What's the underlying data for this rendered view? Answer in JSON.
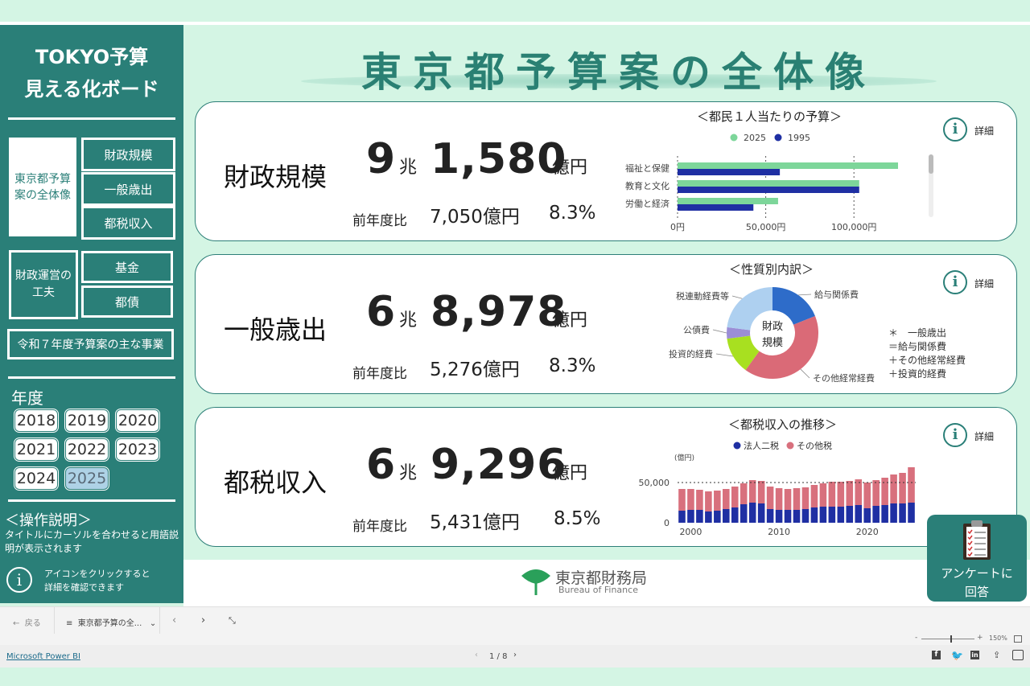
{
  "sidebar": {
    "title_line1": "TOKYO予算",
    "title_line2": "見える化ボード",
    "nav_overview_line1": "東京都予算",
    "nav_overview_line2": "案の全体像",
    "nav_fiscal_scale": "財政規模",
    "nav_general_expenditure": "一般歳出",
    "nav_tax_revenue": "都税収入",
    "nav_management_line1": "財政運営の",
    "nav_management_line2": "工夫",
    "nav_fund": "基金",
    "nav_bonds": "都債",
    "nav_main_projects": "令和７年度予算案の主な事業",
    "year_label": "年度",
    "years": [
      "2018",
      "2019",
      "2020",
      "2021",
      "2022",
      "2023",
      "2024",
      "2025"
    ],
    "selected_year": "2025",
    "op_title": "＜操作説明＞",
    "op_text_line1": "タイトルにカーソルを合わせると用語説",
    "op_text_line2": "明が表示されます",
    "info_icon_glyph": "i",
    "info_text_line1": "アイコンをクリックすると",
    "info_text_line2": "詳細を確認できます"
  },
  "main": {
    "title": "東京都予算案の全体像",
    "detail_label": "詳細",
    "info_glyph": "i",
    "cards": [
      {
        "label": "財政規模",
        "num1": "9",
        "unit1": "兆",
        "num2": "1,580",
        "unit2": "億円",
        "yoy_label": "前年度比",
        "yoy_amount": "7,050億円",
        "yoy_pct": "8.3%"
      },
      {
        "label": "一般歳出",
        "num1": "6",
        "unit1": "兆",
        "num2": "8,978",
        "unit2": "億円",
        "yoy_label": "前年度比",
        "yoy_amount": "5,276億円",
        "yoy_pct": "8.3%"
      },
      {
        "label": "都税収入",
        "num1": "6",
        "unit1": "兆",
        "num2": "9,296",
        "unit2": "億円",
        "yoy_label": "前年度比",
        "yoy_amount": "5,431億円",
        "yoy_pct": "8.5%"
      }
    ],
    "note_line1": "＊　一般歳出",
    "note_line2": "＝給与関係費",
    "note_line3": "＋その他経常経費",
    "note_line4": "＋投資的経費"
  },
  "charts": {
    "colors": {
      "green": "#7dd69a",
      "navy": "#1f2fa3",
      "red": "#d8707d",
      "blue_pie": "#2e6cc9",
      "light_blue": "#aed0f0",
      "purple": "#9b8ed6",
      "lime": "#a8e020",
      "pie_red": "#da6a77"
    },
    "pie_center_line1": "財政",
    "pie_center_line2": "規模",
    "tax_ylabel": "(億円)"
  },
  "chart_data": [
    {
      "type": "bar",
      "orientation": "horizontal",
      "title": "＜都民１人当たりの予算＞",
      "categories": [
        "福祉と保健",
        "教育と文化",
        "労働と経済"
      ],
      "series": [
        {
          "name": "2025",
          "values": [
            125000,
            103000,
            57000
          ]
        },
        {
          "name": "1995",
          "values": [
            58000,
            103000,
            43000
          ]
        }
      ],
      "xlim": [
        0,
        140000
      ],
      "xticks": [
        "0円",
        "50,000円",
        "100,000円"
      ],
      "tick_values": [
        0,
        50000,
        100000
      ],
      "legend": "top"
    },
    {
      "type": "pie",
      "title": "＜性質別内訳＞",
      "slices": [
        {
          "name": "給与関係費",
          "value": 0.19
        },
        {
          "name": "その他経常経費",
          "value": 0.41
        },
        {
          "name": "投資的経費",
          "value": 0.13
        },
        {
          "name": "公債費",
          "value": 0.04
        },
        {
          "name": "税連動経費等",
          "value": 0.23
        }
      ]
    },
    {
      "type": "bar",
      "stacked": true,
      "title": "＜都税収入の推移＞",
      "ylabel": "(億円)",
      "series_names": [
        "法人二税",
        "その他税"
      ],
      "years": [
        1999,
        2000,
        2001,
        2002,
        2003,
        2004,
        2005,
        2006,
        2007,
        2008,
        2009,
        2010,
        2011,
        2012,
        2013,
        2014,
        2015,
        2016,
        2017,
        2018,
        2019,
        2020,
        2021,
        2022,
        2023,
        2024,
        2025
      ],
      "corp": [
        15000,
        16000,
        16000,
        14000,
        15000,
        17000,
        19000,
        23000,
        25000,
        24000,
        17000,
        16000,
        16000,
        16000,
        17000,
        19000,
        20000,
        20000,
        20000,
        21000,
        22000,
        18000,
        21000,
        22000,
        24000,
        24000,
        25000
      ],
      "other": [
        27000,
        26000,
        25000,
        25000,
        25000,
        25000,
        26000,
        26000,
        28000,
        28000,
        28000,
        27000,
        26000,
        27000,
        27000,
        28000,
        29000,
        31000,
        31000,
        31000,
        32000,
        32000,
        32000,
        34000,
        36000,
        38000,
        44000
      ],
      "xticks": [
        "2000",
        "2010",
        "2020"
      ],
      "ytick_labels": [
        "0",
        "50,000"
      ],
      "ytick_values": [
        0,
        50000
      ],
      "ylim": [
        0,
        75000
      ],
      "reference": 50000
    }
  ],
  "footer": {
    "bureau_ja": "東京都財務局",
    "bureau_en": "Bureau of Finance",
    "survey_line1": "アンケートに",
    "survey_line2": "回答",
    "back_label": "戻る",
    "page_tab": "東京都予算の全...",
    "zoom": "150%",
    "powerbi_link": "Microsoft Power BI",
    "page_indicator": "1 / 8"
  }
}
